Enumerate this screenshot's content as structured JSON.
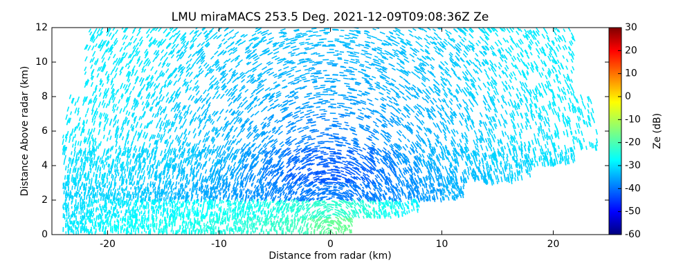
{
  "chart_data": {
    "type": "heatmap",
    "title": "LMU miraMACS 253.5 Deg. 2021-12-09T09:08:36Z  Ze",
    "xlabel": "Distance from radar (km)",
    "ylabel": "Distance Above radar  (km)",
    "colorbar_label": "Ze (dB)",
    "colormap": "jet",
    "x": [
      -23,
      -21,
      -19,
      -17,
      -15,
      -13,
      -11,
      -9,
      -7,
      -5,
      -3,
      -1,
      1,
      3,
      5,
      7,
      9,
      11,
      13,
      15,
      17,
      19,
      21,
      23
    ],
    "y": [
      0.5,
      1.5,
      2.5,
      3.5,
      4.5,
      5.5,
      6.5,
      7.5,
      8.5,
      9.5,
      10.5,
      11.5
    ],
    "values": [
      [
        -28,
        -27,
        -26,
        -26,
        -25,
        -25,
        -24,
        -24,
        -23,
        -22,
        -21,
        -18,
        -17,
        null,
        null,
        null,
        null,
        null,
        null,
        null,
        null,
        null,
        null,
        null
      ],
      [
        -29,
        -28,
        -28,
        -27,
        -27,
        -26,
        -26,
        -25,
        -25,
        -24,
        -23,
        -22,
        -22,
        -23,
        -25,
        -27,
        null,
        null,
        null,
        null,
        null,
        null,
        null,
        null
      ],
      [
        -30,
        -30,
        -30,
        -31,
        -32,
        -33,
        -34,
        -35,
        -36,
        -37,
        -38,
        -38,
        -38,
        -38,
        -37,
        -36,
        -35,
        -33,
        null,
        null,
        null,
        null,
        null,
        null
      ],
      [
        -29,
        -29,
        -30,
        -30,
        -31,
        -32,
        -33,
        -34,
        -36,
        -38,
        -40,
        -41,
        -41,
        -40,
        -38,
        -36,
        -34,
        -33,
        -32,
        -31,
        -30,
        null,
        null,
        null
      ],
      [
        -29,
        -29,
        -29,
        -30,
        -30,
        -31,
        -32,
        -33,
        -35,
        -37,
        -39,
        -40,
        -40,
        -39,
        -37,
        -35,
        -33,
        -32,
        -31,
        -30,
        -30,
        -29,
        -29,
        null
      ],
      [
        -28,
        -28,
        -29,
        -29,
        -30,
        -31,
        -32,
        -33,
        -34,
        -35,
        -37,
        -38,
        -38,
        -37,
        -35,
        -34,
        -33,
        -32,
        -31,
        -30,
        -29,
        -29,
        -28,
        -28
      ],
      [
        -28,
        -28,
        -29,
        -29,
        -30,
        -31,
        -32,
        -33,
        -34,
        -35,
        -36,
        -37,
        -37,
        -36,
        -35,
        -34,
        -33,
        -32,
        -31,
        -30,
        -29,
        -29,
        -28,
        -28
      ],
      [
        -28,
        -28,
        -28,
        -29,
        -30,
        -31,
        -32,
        -33,
        -33,
        -34,
        -35,
        -35,
        -35,
        -35,
        -34,
        -33,
        -33,
        -32,
        -31,
        -30,
        -29,
        -28,
        -28,
        -28
      ],
      [
        null,
        -28,
        -28,
        -29,
        -29,
        -30,
        -31,
        -32,
        -33,
        -33,
        -34,
        -34,
        -34,
        -34,
        -33,
        -33,
        -32,
        -31,
        -30,
        -29,
        -29,
        -28,
        -28,
        null
      ],
      [
        null,
        -28,
        -28,
        -28,
        -29,
        -30,
        -31,
        -32,
        -32,
        -33,
        -33,
        -34,
        -34,
        -33,
        -33,
        -32,
        -32,
        -31,
        -30,
        -29,
        -28,
        -28,
        -28,
        null
      ],
      [
        null,
        -28,
        -28,
        -28,
        -29,
        -30,
        -31,
        -31,
        -32,
        -32,
        -33,
        -33,
        -33,
        -33,
        -32,
        -32,
        -31,
        -31,
        -30,
        -29,
        -28,
        -28,
        -28,
        null
      ],
      [
        null,
        -28,
        -28,
        -28,
        -28,
        -29,
        -30,
        -31,
        -31,
        -32,
        -32,
        -32,
        -32,
        -32,
        -32,
        -31,
        -31,
        -30,
        -29,
        -28,
        -28,
        -28,
        -28,
        null
      ]
    ],
    "xlim": [
      -25,
      25
    ],
    "xticks": [
      -20,
      -10,
      0,
      10,
      20
    ],
    "ylim": [
      0,
      12
    ],
    "yticks": [
      0,
      2,
      4,
      6,
      8,
      10,
      12
    ],
    "clim": [
      -60,
      30
    ],
    "cticks": [
      -60,
      -50,
      -40,
      -30,
      -20,
      -10,
      0,
      10,
      20,
      30
    ]
  }
}
